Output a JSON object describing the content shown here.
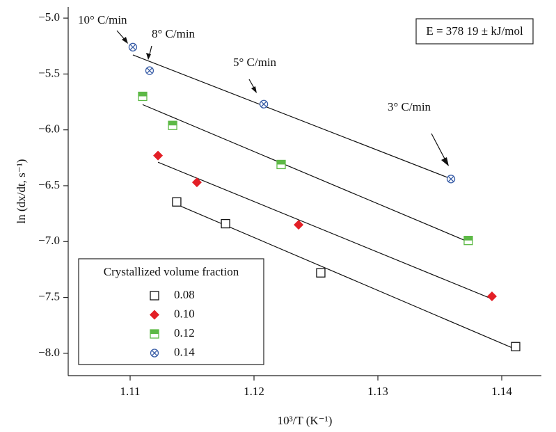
{
  "chart_data": {
    "type": "scatter",
    "xlabel": "10³/T (K⁻¹)",
    "ylabel": "ln (dx/dt, s⁻¹)",
    "xlim": [
      1.105,
      1.1432
    ],
    "ylim": [
      -8.2,
      -4.9
    ],
    "xticks": [
      1.11,
      1.12,
      1.13,
      1.14
    ],
    "yticks": [
      {
        "value": -5.0,
        "label": "−5.0"
      },
      {
        "value": -5.5,
        "label": "−5.5"
      },
      {
        "value": -6.0,
        "label": "−6.0"
      },
      {
        "value": -6.5,
        "label": "−6.5"
      },
      {
        "value": -7.0,
        "label": "−7.0"
      },
      {
        "value": -7.5,
        "label": "−7.5"
      },
      {
        "value": -8.0,
        "label": "−8.0"
      }
    ],
    "legend_title": "Crystallized volume fraction",
    "legend_position": "lower left",
    "fit_lines": true,
    "series": [
      {
        "name": "0.08",
        "color": "#111111",
        "marker": "square-open",
        "x": [
          1.11376,
          1.1177,
          1.12539,
          1.14112
        ],
        "values": [
          -6.645,
          -6.84,
          -7.28,
          -7.94
        ]
      },
      {
        "name": "0.10",
        "color": "#e31f26",
        "marker": "diamond",
        "x": [
          1.11225,
          1.11539,
          1.1236,
          1.13921
        ],
        "values": [
          -6.23,
          -6.47,
          -6.85,
          -7.49
        ]
      },
      {
        "name": "0.12",
        "color": "#5db946",
        "marker": "square-half",
        "x": [
          1.11101,
          1.11343,
          1.12219,
          1.1373
        ],
        "values": [
          -5.7,
          -5.96,
          -6.31,
          -6.99
        ]
      },
      {
        "name": "0.14",
        "color": "#3b5fa8",
        "marker": "circle-x",
        "x": [
          1.11022,
          1.11157,
          1.12079,
          1.1359
        ],
        "values": [
          -5.26,
          -5.47,
          -5.77,
          -6.44
        ]
      }
    ],
    "annotations": [
      {
        "text": "10° C/min"
      },
      {
        "text": "8° C/min"
      },
      {
        "text": "5° C/min"
      },
      {
        "text": "3° C/min"
      },
      {
        "text": "E = 378 19 ± kJ/mol"
      }
    ]
  }
}
